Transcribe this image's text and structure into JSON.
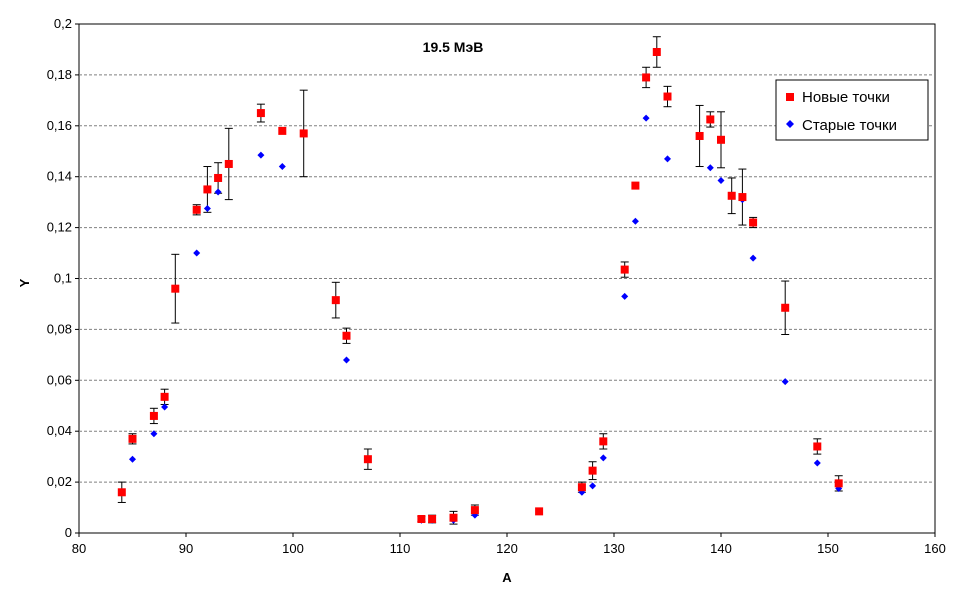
{
  "chart_data": {
    "type": "scatter",
    "title": "",
    "annotation": "19.5 МэВ",
    "xlabel": "A",
    "ylabel": "Y",
    "xlim": [
      80,
      160
    ],
    "ylim": [
      0,
      0.2
    ],
    "x_ticks": [
      80,
      90,
      100,
      110,
      120,
      130,
      140,
      150,
      160
    ],
    "x_tick_labels": [
      "80",
      "90",
      "100",
      "110",
      "120",
      "130",
      "140",
      "150",
      "160"
    ],
    "y_ticks": [
      0,
      0.02,
      0.04,
      0.06,
      0.08,
      0.1,
      0.12,
      0.14,
      0.16,
      0.18,
      0.2
    ],
    "y_tick_labels": [
      "0",
      "0,02",
      "0,04",
      "0,06",
      "0,08",
      "0,1",
      "0,12",
      "0,14",
      "0,16",
      "0,18",
      "0,2"
    ],
    "grid": "horizontal dashed",
    "legend_position": "top-right",
    "series": [
      {
        "name": "Новые точки",
        "marker": "square",
        "color": "#ff0000",
        "points": [
          {
            "x": 84,
            "y": 0.016,
            "err": 0.004
          },
          {
            "x": 85,
            "y": 0.037,
            "err": 0.002
          },
          {
            "x": 87,
            "y": 0.046,
            "err": 0.003
          },
          {
            "x": 88,
            "y": 0.0535,
            "err": 0.003
          },
          {
            "x": 89,
            "y": 0.096,
            "err": 0.0135
          },
          {
            "x": 91,
            "y": 0.127,
            "err": 0.002
          },
          {
            "x": 92,
            "y": 0.135,
            "err": 0.009
          },
          {
            "x": 93,
            "y": 0.1395,
            "err": 0.006
          },
          {
            "x": 94,
            "y": 0.145,
            "err": 0.014
          },
          {
            "x": 97,
            "y": 0.165,
            "err": 0.0035
          },
          {
            "x": 99,
            "y": 0.158,
            "err": 0
          },
          {
            "x": 101,
            "y": 0.157,
            "err": 0.017
          },
          {
            "x": 104,
            "y": 0.0915,
            "err": 0.007
          },
          {
            "x": 105,
            "y": 0.0775,
            "err": 0.003
          },
          {
            "x": 107,
            "y": 0.029,
            "err": 0.004
          },
          {
            "x": 112,
            "y": 0.0055,
            "err": 0.001
          },
          {
            "x": 113,
            "y": 0.0055,
            "err": 0.0015
          },
          {
            "x": 115,
            "y": 0.006,
            "err": 0.0025
          },
          {
            "x": 117,
            "y": 0.009,
            "err": 0.002
          },
          {
            "x": 123,
            "y": 0.0085,
            "err": 0
          },
          {
            "x": 127,
            "y": 0.018,
            "err": 0.002
          },
          {
            "x": 128,
            "y": 0.0245,
            "err": 0.0035
          },
          {
            "x": 129,
            "y": 0.036,
            "err": 0.003
          },
          {
            "x": 131,
            "y": 0.1035,
            "err": 0.003
          },
          {
            "x": 132,
            "y": 0.1365,
            "err": 0
          },
          {
            "x": 133,
            "y": 0.179,
            "err": 0.004
          },
          {
            "x": 134,
            "y": 0.189,
            "err": 0.006
          },
          {
            "x": 135,
            "y": 0.1715,
            "err": 0.004
          },
          {
            "x": 138,
            "y": 0.156,
            "err": 0.012
          },
          {
            "x": 139,
            "y": 0.1625,
            "err": 0.003
          },
          {
            "x": 140,
            "y": 0.1545,
            "err": 0.011
          },
          {
            "x": 141,
            "y": 0.1325,
            "err": 0.007
          },
          {
            "x": 142,
            "y": 0.132,
            "err": 0.011
          },
          {
            "x": 143,
            "y": 0.122,
            "err": 0.002
          },
          {
            "x": 146,
            "y": 0.0885,
            "err": 0.0105
          },
          {
            "x": 149,
            "y": 0.034,
            "err": 0.003
          },
          {
            "x": 151,
            "y": 0.0195,
            "err": 0.003
          }
        ]
      },
      {
        "name": "Старые точки",
        "marker": "diamond",
        "color": "#0000ff",
        "points": [
          {
            "x": 85,
            "y": 0.029
          },
          {
            "x": 87,
            "y": 0.039
          },
          {
            "x": 88,
            "y": 0.0495
          },
          {
            "x": 91,
            "y": 0.11
          },
          {
            "x": 92,
            "y": 0.1275
          },
          {
            "x": 93,
            "y": 0.134
          },
          {
            "x": 97,
            "y": 0.1485
          },
          {
            "x": 99,
            "y": 0.144
          },
          {
            "x": 105,
            "y": 0.068
          },
          {
            "x": 112,
            "y": 0.005
          },
          {
            "x": 113,
            "y": 0.005
          },
          {
            "x": 115,
            "y": 0.005
          },
          {
            "x": 117,
            "y": 0.007
          },
          {
            "x": 127,
            "y": 0.016
          },
          {
            "x": 128,
            "y": 0.0185
          },
          {
            "x": 129,
            "y": 0.0295
          },
          {
            "x": 131,
            "y": 0.093
          },
          {
            "x": 132,
            "y": 0.1225
          },
          {
            "x": 133,
            "y": 0.163
          },
          {
            "x": 135,
            "y": 0.147
          },
          {
            "x": 139,
            "y": 0.1435
          },
          {
            "x": 140,
            "y": 0.1385
          },
          {
            "x": 142,
            "y": 0.131
          },
          {
            "x": 143,
            "y": 0.108
          },
          {
            "x": 146,
            "y": 0.0595
          },
          {
            "x": 149,
            "y": 0.0275
          },
          {
            "x": 151,
            "y": 0.0175
          }
        ]
      }
    ]
  }
}
